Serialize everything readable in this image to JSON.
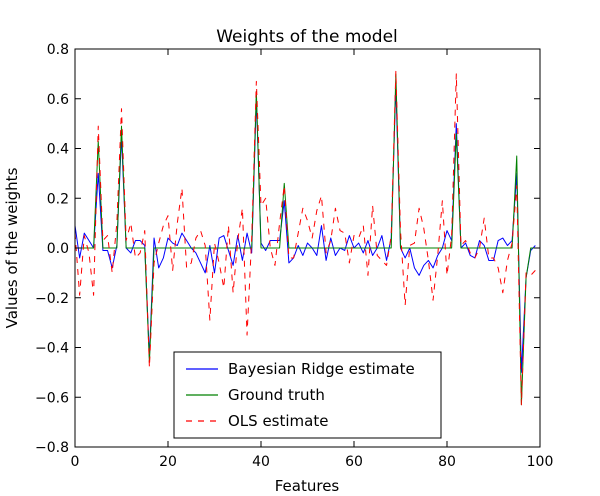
{
  "chart_data": {
    "type": "line",
    "title": "Weights of the model",
    "xlabel": "Features",
    "ylabel": "Values of the weights",
    "xlim": [
      0,
      100
    ],
    "ylim": [
      -0.8,
      0.8
    ],
    "xticks": [
      "0",
      "20",
      "40",
      "60",
      "80",
      "100"
    ],
    "yticks": [
      "−0.8",
      "−0.6",
      "−0.4",
      "−0.2",
      "0.0",
      "0.2",
      "0.4",
      "0.6",
      "0.8"
    ],
    "grid": false,
    "legend_position": "lower-center",
    "series": [
      {
        "name": "Bayesian Ridge estimate",
        "color": "#0000ff",
        "style": "solid",
        "x": [
          0,
          1,
          2,
          3,
          4,
          5,
          6,
          7,
          8,
          9,
          10,
          11,
          12,
          13,
          14,
          15,
          16,
          17,
          18,
          19,
          20,
          21,
          22,
          23,
          24,
          25,
          26,
          27,
          28,
          29,
          30,
          31,
          32,
          33,
          34,
          35,
          36,
          37,
          38,
          39,
          40,
          41,
          42,
          43,
          44,
          45,
          46,
          47,
          48,
          49,
          50,
          51,
          52,
          53,
          54,
          55,
          56,
          57,
          58,
          59,
          60,
          61,
          62,
          63,
          64,
          65,
          66,
          67,
          68,
          69,
          70,
          71,
          72,
          73,
          74,
          75,
          76,
          77,
          78,
          79,
          80,
          81,
          82,
          83,
          84,
          85,
          86,
          87,
          88,
          89,
          90,
          91,
          92,
          93,
          94,
          95,
          96,
          97,
          98,
          99
        ],
        "values": [
          0.09,
          -0.04,
          0.06,
          0.03,
          0.0,
          0.3,
          -0.01,
          -0.01,
          -0.08,
          0.01,
          0.45,
          0.0,
          -0.02,
          0.03,
          0.03,
          0.01,
          -0.44,
          0.04,
          -0.08,
          -0.04,
          0.04,
          0.02,
          0.01,
          0.06,
          0.03,
          0.0,
          -0.02,
          -0.06,
          -0.1,
          0.01,
          -0.1,
          0.04,
          0.05,
          -0.01,
          -0.07,
          0.05,
          -0.05,
          0.06,
          -0.02,
          0.6,
          0.02,
          -0.01,
          0.03,
          0.03,
          0.03,
          0.19,
          -0.06,
          -0.04,
          0.01,
          -0.03,
          0.02,
          0.0,
          -0.03,
          0.09,
          -0.05,
          0.04,
          -0.03,
          0.0,
          -0.01,
          0.05,
          0.0,
          0.02,
          -0.02,
          0.03,
          -0.03,
          0.0,
          0.05,
          -0.05,
          0.04,
          0.65,
          0.0,
          -0.04,
          0.0,
          -0.08,
          -0.11,
          -0.07,
          -0.05,
          -0.08,
          -0.03,
          0.0,
          0.07,
          0.03,
          0.5,
          0.0,
          0.02,
          -0.03,
          -0.04,
          0.03,
          0.01,
          -0.05,
          -0.05,
          0.03,
          0.04,
          0.01,
          0.03,
          0.3,
          -0.5,
          -0.12,
          -0.01,
          0.01
        ]
      },
      {
        "name": "Ground truth",
        "color": "#008000",
        "style": "solid",
        "x": [
          0,
          1,
          2,
          3,
          4,
          5,
          6,
          7,
          8,
          9,
          10,
          11,
          12,
          13,
          14,
          15,
          16,
          17,
          18,
          19,
          20,
          21,
          22,
          23,
          24,
          25,
          26,
          27,
          28,
          29,
          30,
          31,
          32,
          33,
          34,
          35,
          36,
          37,
          38,
          39,
          40,
          41,
          42,
          43,
          44,
          45,
          46,
          47,
          48,
          49,
          50,
          51,
          52,
          53,
          54,
          55,
          56,
          57,
          58,
          59,
          60,
          61,
          62,
          63,
          64,
          65,
          66,
          67,
          68,
          69,
          70,
          71,
          72,
          73,
          74,
          75,
          76,
          77,
          78,
          79,
          80,
          81,
          82,
          83,
          84,
          85,
          86,
          87,
          88,
          89,
          90,
          91,
          92,
          93,
          94,
          95,
          96,
          97,
          98,
          99
        ],
        "values": [
          0,
          0,
          0,
          0,
          0,
          0.43,
          0,
          0,
          0,
          0,
          0.49,
          0,
          0,
          0,
          0,
          0,
          -0.46,
          0,
          0,
          0,
          0,
          0,
          0,
          0,
          0,
          0,
          0,
          0,
          0,
          0,
          0,
          0,
          0,
          0,
          0,
          0,
          0,
          0,
          0,
          0.63,
          0,
          0,
          0,
          0,
          0,
          0.26,
          0,
          0,
          0,
          0,
          0,
          0,
          0,
          0,
          0,
          0,
          0,
          0,
          0,
          0,
          0,
          0,
          0,
          0,
          0,
          0,
          0,
          0,
          0,
          0.7,
          0,
          0,
          0,
          0,
          0,
          0,
          0,
          0,
          0,
          0,
          0,
          0,
          0.46,
          0,
          0,
          0,
          0,
          0,
          0,
          0,
          0,
          0,
          0,
          0,
          0,
          0.37,
          -0.63,
          -0.12,
          0,
          0
        ]
      },
      {
        "name": "OLS estimate",
        "color": "#ff0000",
        "style": "dashed",
        "x": [
          0,
          1,
          2,
          3,
          4,
          5,
          6,
          7,
          8,
          9,
          10,
          11,
          12,
          13,
          14,
          15,
          16,
          17,
          18,
          19,
          20,
          21,
          22,
          23,
          24,
          25,
          26,
          27,
          28,
          29,
          30,
          31,
          32,
          33,
          34,
          35,
          36,
          37,
          38,
          39,
          40,
          41,
          42,
          43,
          44,
          45,
          46,
          47,
          48,
          49,
          50,
          51,
          52,
          53,
          54,
          55,
          56,
          57,
          58,
          59,
          60,
          61,
          62,
          63,
          64,
          65,
          66,
          67,
          68,
          69,
          70,
          71,
          72,
          73,
          74,
          75,
          76,
          77,
          78,
          79,
          80,
          81,
          82,
          83,
          84,
          85,
          86,
          87,
          88,
          89,
          90,
          91,
          92,
          93,
          94,
          95,
          96,
          97,
          98,
          99
        ],
        "values": [
          0.06,
          -0.19,
          0.05,
          -0.02,
          -0.19,
          0.49,
          0.03,
          0.05,
          -0.1,
          0.1,
          0.56,
          0.03,
          0.1,
          -0.04,
          -0.02,
          0.07,
          -0.48,
          -0.06,
          0.02,
          0.09,
          0.13,
          -0.09,
          0.1,
          0.24,
          -0.08,
          -0.06,
          0.04,
          0.07,
          0.01,
          -0.29,
          0.02,
          -0.06,
          -0.16,
          0.09,
          -0.18,
          0.03,
          0.16,
          -0.35,
          0.04,
          0.67,
          0.17,
          0.2,
          0.0,
          -0.07,
          0.1,
          0.25,
          -0.04,
          -0.04,
          0.06,
          0.16,
          0.11,
          0.04,
          0.15,
          0.21,
          -0.02,
          0.03,
          0.16,
          0.07,
          0.06,
          -0.06,
          0.05,
          0.04,
          0.09,
          -0.11,
          0.17,
          -0.03,
          -0.05,
          -0.07,
          0.05,
          0.71,
          0.07,
          -0.23,
          0.01,
          0.02,
          0.16,
          0.08,
          -0.05,
          -0.21,
          -0.03,
          0.19,
          -0.11,
          0.05,
          0.7,
          0.01,
          0.03,
          -0.02,
          -0.04,
          0.0,
          0.12,
          -0.04,
          -0.04,
          -0.08,
          -0.18,
          -0.05,
          0.02,
          0.25,
          -0.63,
          -0.1,
          -0.11,
          -0.09
        ]
      }
    ]
  }
}
